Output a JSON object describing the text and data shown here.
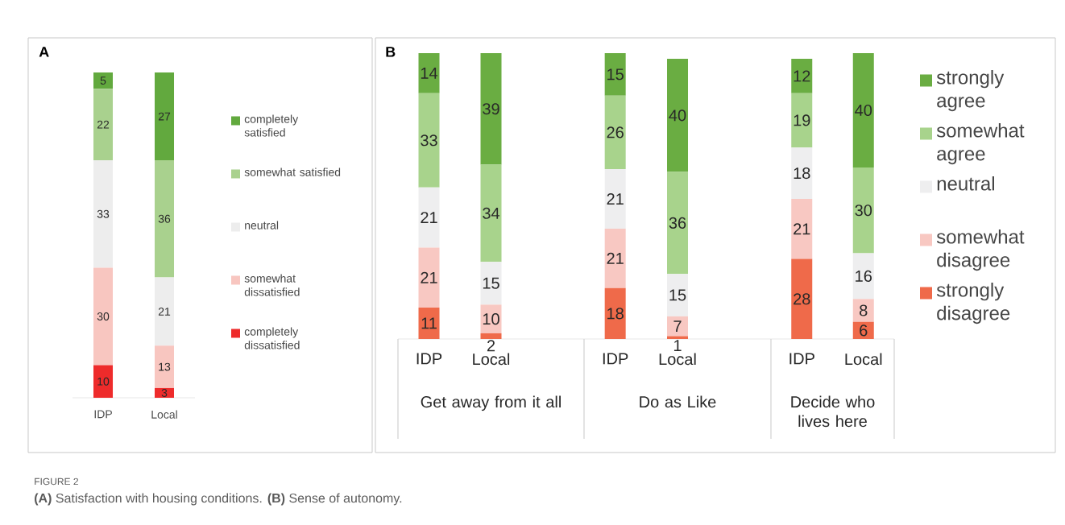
{
  "chart_data": [
    {
      "type": "bar",
      "title": "A",
      "stacked": true,
      "data_labels": true,
      "legend": "right",
      "categories": [
        "IDP",
        "Local"
      ],
      "annotations": [
        "FIGURE 2",
        "**(A)** Satisfaction with housing conditions. **(B)** Sense of autonomy."
      ],
      "series": [
        {
          "name": "completely dissatisfied",
          "color": "#ee2b2b",
          "values": [
            10,
            3
          ]
        },
        {
          "name": "somewhat dissatisfied",
          "color": "#f8c6c0",
          "values": [
            30,
            13
          ]
        },
        {
          "name": "neutral",
          "color": "#ededed",
          "values": [
            33,
            21
          ]
        },
        {
          "name": "somewhat satisfied",
          "color": "#a9d18e",
          "values": [
            22,
            36
          ]
        },
        {
          "name": "completely satisfied",
          "color": "#62a93e",
          "values": [
            5,
            27
          ]
        }
      ]
    },
    {
      "type": "bar",
      "title": "B",
      "xlabel": "Get away from it all",
      "stacked": true,
      "data_labels": true,
      "categories": [
        "IDP",
        "Local"
      ],
      "series": [
        {
          "color": "#ef6a4a",
          "values": [
            11,
            2
          ]
        },
        {
          "color": "#f8c8c2",
          "values": [
            21,
            10
          ]
        },
        {
          "color": "#eeeeef",
          "values": [
            21,
            15
          ]
        },
        {
          "color": "#a8d38c",
          "values": [
            33,
            34
          ]
        },
        {
          "color": "#6aad42",
          "values": [
            14,
            39
          ]
        }
      ]
    },
    {
      "type": "bar",
      "xlabel": "Do as Like",
      "stacked": true,
      "data_labels": true,
      "categories": [
        "IDP",
        "Local"
      ],
      "series": [
        {
          "color": "#ef6a4a",
          "values": [
            18,
            1
          ]
        },
        {
          "color": "#f8c8c2",
          "values": [
            21,
            7
          ]
        },
        {
          "color": "#eeeeef",
          "values": [
            21,
            15
          ]
        },
        {
          "color": "#a8d38c",
          "values": [
            26,
            36
          ]
        },
        {
          "color": "#6aad42",
          "values": [
            15,
            40
          ]
        }
      ]
    },
    {
      "type": "bar",
      "xlabel": "Decide who lives here",
      "stacked": true,
      "data_labels": true,
      "legend": "right",
      "categories": [
        "IDP",
        "Local"
      ],
      "series": [
        {
          "name": "strongly disagree",
          "color": "#ef6a4a",
          "values": [
            28,
            6
          ]
        },
        {
          "name": "somewhat disagree",
          "color": "#f8c8c2",
          "values": [
            21,
            8
          ]
        },
        {
          "name": "neutral",
          "color": "#eeeeef",
          "values": [
            18,
            16
          ]
        },
        {
          "name": "somewhat agree",
          "color": "#a8d38c",
          "values": [
            19,
            30
          ]
        },
        {
          "name": "strongly agree",
          "color": "#6aad42",
          "values": [
            12,
            40
          ]
        }
      ]
    }
  ]
}
